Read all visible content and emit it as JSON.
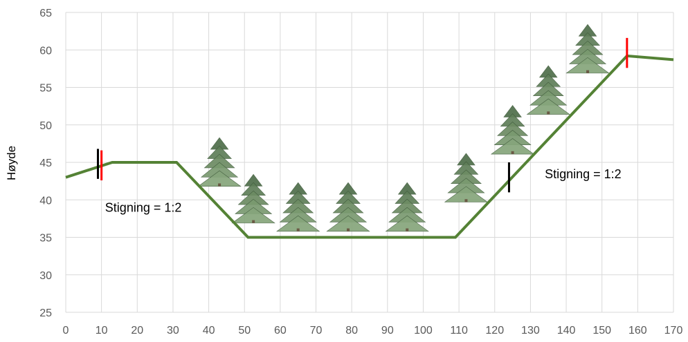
{
  "chart_data": {
    "type": "line",
    "xlabel": "",
    "ylabel": "Høyde",
    "xlim": [
      0,
      170
    ],
    "ylim": [
      25,
      65
    ],
    "x_ticks": [
      0,
      10,
      20,
      30,
      40,
      50,
      60,
      70,
      80,
      90,
      100,
      110,
      120,
      130,
      140,
      150,
      160,
      170
    ],
    "y_ticks": [
      25,
      30,
      35,
      40,
      45,
      50,
      55,
      60,
      65
    ],
    "grid": true,
    "series": [
      {
        "color": "#548235",
        "points": [
          {
            "x": 0,
            "y": 43
          },
          {
            "x": 13,
            "y": 45
          },
          {
            "x": 31,
            "y": 45
          },
          {
            "x": 51,
            "y": 35
          },
          {
            "x": 109,
            "y": 35
          },
          {
            "x": 157,
            "y": 59.2
          },
          {
            "x": 170,
            "y": 58.7
          }
        ]
      }
    ],
    "annotations": [
      {
        "text": "Stigning = 1:2",
        "x": 11,
        "y": 38.4
      },
      {
        "text": "Stigning = 1:2",
        "x": 134,
        "y": 42.9
      }
    ],
    "markers": [
      {
        "color": "#000000",
        "x": 9,
        "y1": 42.8,
        "y2": 46.8
      },
      {
        "color": "#ff0000",
        "x": 10,
        "y1": 42.6,
        "y2": 46.6
      },
      {
        "color": "#000000",
        "x": 124,
        "y1": 41,
        "y2": 45
      },
      {
        "color": "#ff0000",
        "x": 157,
        "y1": 57.6,
        "y2": 61.6
      }
    ],
    "trees": [
      {
        "x": 43,
        "y_base": 41.8,
        "height": 6.5
      },
      {
        "x": 52.5,
        "y_base": 36.9,
        "height": 6.5
      },
      {
        "x": 65,
        "y_base": 35.8,
        "height": 6.5
      },
      {
        "x": 79,
        "y_base": 35.8,
        "height": 6.5
      },
      {
        "x": 95.5,
        "y_base": 35.8,
        "height": 6.5
      },
      {
        "x": 112,
        "y_base": 39.7,
        "height": 6.5
      },
      {
        "x": 125,
        "y_base": 46.1,
        "height": 6.5
      },
      {
        "x": 135,
        "y_base": 51.4,
        "height": 6.5
      },
      {
        "x": 146,
        "y_base": 56.9,
        "height": 6.5
      }
    ]
  }
}
